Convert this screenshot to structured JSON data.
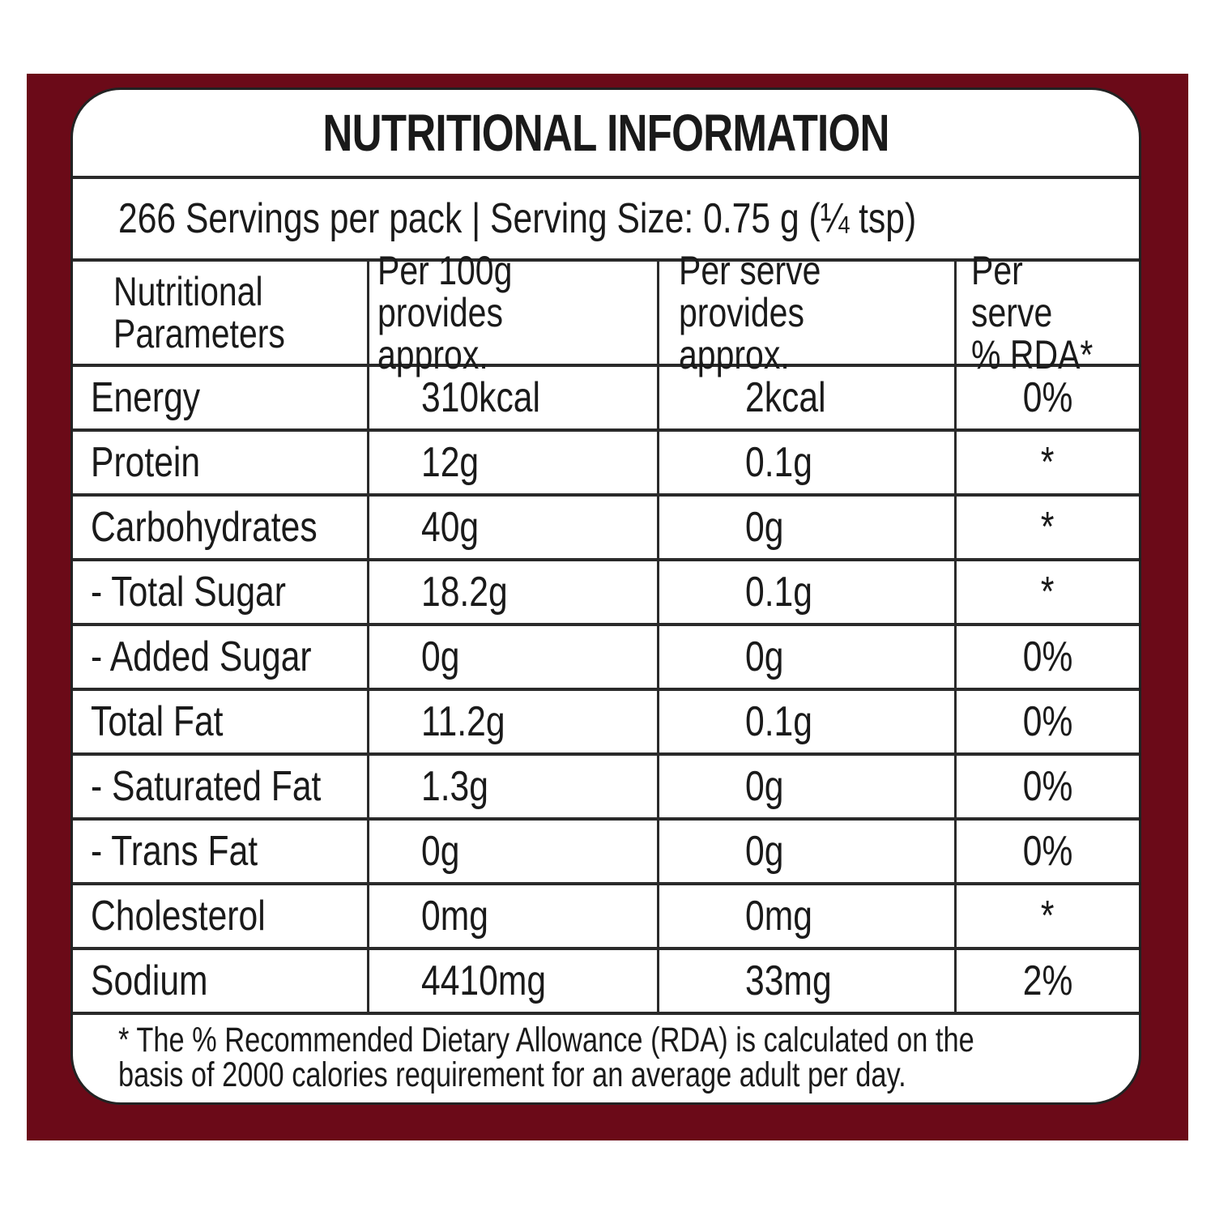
{
  "title": "NUTRITIONAL INFORMATION",
  "servings_line": "266 Servings per pack  | Serving Size: 0.75 g (¼ tsp)",
  "headers": [
    [
      "Nutritional",
      "Parameters"
    ],
    [
      "Per 100g",
      "provides approx."
    ],
    [
      "Per serve",
      "provides approx."
    ],
    [
      "Per serve",
      "% RDA*"
    ]
  ],
  "rows": [
    [
      "Energy",
      "310kcal",
      "2kcal",
      "0%"
    ],
    [
      "Protein",
      "12g",
      "0.1g",
      "*"
    ],
    [
      "Carbohydrates",
      "40g",
      "0g",
      "*"
    ],
    [
      "- Total Sugar",
      "18.2g",
      "0.1g",
      "*"
    ],
    [
      "- Added Sugar",
      "0g",
      "0g",
      "0%"
    ],
    [
      "Total Fat",
      "11.2g",
      "0.1g",
      "0%"
    ],
    [
      "- Saturated Fat",
      "1.3g",
      "0g",
      "0%"
    ],
    [
      "- Trans Fat",
      "0g",
      "0g",
      "0%"
    ],
    [
      "Cholesterol",
      "0mg",
      "0mg",
      "*"
    ],
    [
      "Sodium",
      "4410mg",
      "33mg",
      "2%"
    ]
  ],
  "footnote": [
    "* The % Recommended Dietary Allowance (RDA) is calculated on the",
    "basis of 2000 calories requirement for an average adult per day."
  ],
  "colors": {
    "frame": "#6b0a18",
    "lines": "#2a2a2a"
  }
}
